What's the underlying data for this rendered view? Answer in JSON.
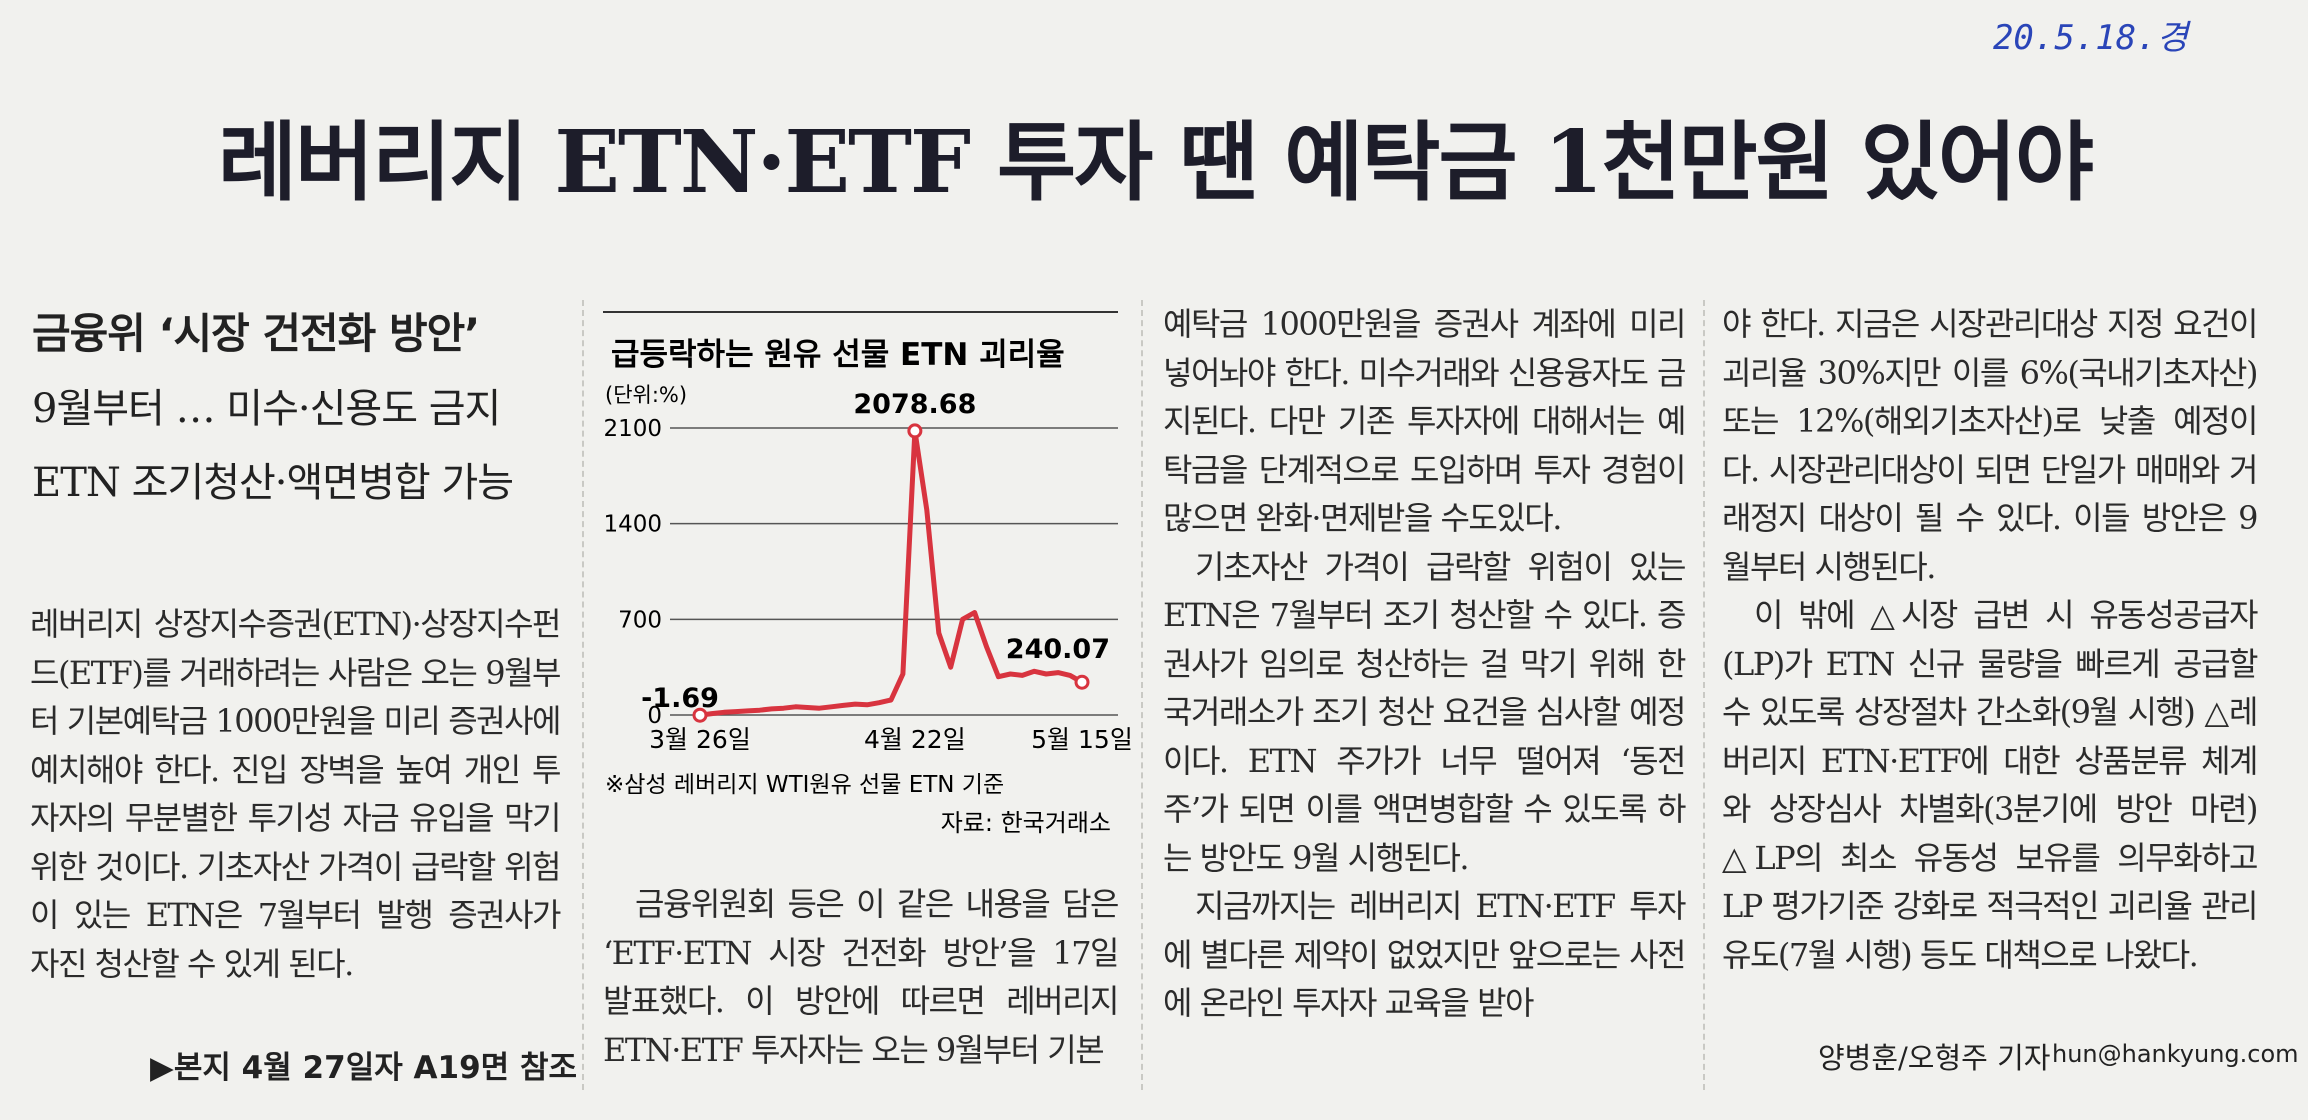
{
  "header": {
    "date_stamp": "20.5.18.경",
    "title": "레버리지 ETN·ETF 투자 땐 예탁금 1천만원 있어야"
  },
  "subheads": [
    "금융위 ‘시장 건전화 방안’",
    "9월부터 … 미수·신용도 금지",
    "ETN 조기청산·액면병합 가능"
  ],
  "columns": [
    [
      "레버리지 상장지수증권(ETN)·상장지수펀드(ETF)를 거래하려는 사람은 오는 9월부터 기본예탁금 1000만원을 미리 증권사에 예치해야 한다. 진입 장벽을 높여 개인 투자자의 무분별한 투기성 자금 유입을 막기 위한 것이다. 기초자산 가격이 급락할 위험이 있는 ETN은 7월부터 발행 증권사가 자진 청산할 수 있게 된다."
    ],
    [
      "금융위원회 등은 이 같은 내용을 담은 ‘ETF·ETN 시장 건전화 방안’을 17일 발표했다. 이 방안에 따르면 레버리지 ETN·ETF 투자자는 오는 9월부터 기본"
    ],
    [
      "예탁금 1000만원을 증권사 계좌에 미리 넣어놔야 한다. 미수거래와 신용융자도 금지된다. 다만 기존 투자자에 대해서는 예탁금을 단계적으로 도입하며 투자 경험이 많으면 완화·면제받을 수도있다.",
      "기초자산 가격이 급락할 위험이 있는 ETN은 7월부터 조기 청산할 수 있다. 증권사가 임의로 청산하는 걸 막기 위해 한국거래소가 조기 청산 요건을 심사할 예정이다. ETN 주가가 너무 떨어져 ‘동전주’가 되면 이를 액면병합할 수 있도록 하는 방안도 9월 시행된다.",
      "지금까지는 레버리지 ETN·ETF 투자에 별다른 제약이 없었지만 앞으로는 사전에 온라인 투자자 교육을 받아"
    ],
    [
      "야 한다. 지금은 시장관리대상 지정 요건이 괴리율 30%지만 이를 6%(국내기초자산) 또는 12%(해외기초자산)로 낮출 예정이다. 시장관리대상이 되면 단일가 매매와 거래정지 대상이 될 수 있다. 이들 방안은 9월부터 시행된다.",
      "이 밖에 △시장 급변 시 유동성공급자(LP)가 ETN 신규 물량을 빠르게 공급할 수 있도록 상장절차 간소화(9월 시행) △레버리지 ETN·ETF에 대한 상품분류 체계와 상장심사 차별화(3분기에 방안 마련) △LP의 최소 유동성 보유를 의무화하고 LP 평가기준 강화로 적극적인 괴리율 관리 유도(7월 시행) 등도 대책으로 나왔다."
    ]
  ],
  "reference": "▶본지 4월 27일자 A19면 참조",
  "byline": "양병훈/오형주 기자",
  "email": "hun@hankyung.com",
  "chart_data": {
    "type": "line",
    "title": "급등락하는 원유 선물 ETN 괴리율",
    "unit": "(단위:%)",
    "categories": [
      "3월 26일",
      null,
      null,
      null,
      null,
      null,
      null,
      null,
      null,
      null,
      null,
      null,
      null,
      null,
      null,
      null,
      null,
      null,
      "4월 22일",
      null,
      null,
      null,
      null,
      null,
      null,
      null,
      null,
      null,
      null,
      null,
      null,
      null,
      "5월 15일"
    ],
    "values": [
      -1.69,
      10,
      20,
      25,
      30,
      35,
      45,
      50,
      60,
      55,
      50,
      60,
      70,
      80,
      75,
      90,
      110,
      300,
      2078.68,
      1500,
      600,
      350,
      700,
      750,
      500,
      280,
      300,
      290,
      320,
      300,
      310,
      290,
      240.07
    ],
    "color": "#d8343f",
    "ylim": [
      0,
      2100
    ],
    "yticks": [
      0,
      700,
      1400,
      2100
    ],
    "grid": true,
    "note": "※삼성 레버리지 WTI원유 선물 ETN 기준",
    "source": "자료: 한국거래소"
  }
}
